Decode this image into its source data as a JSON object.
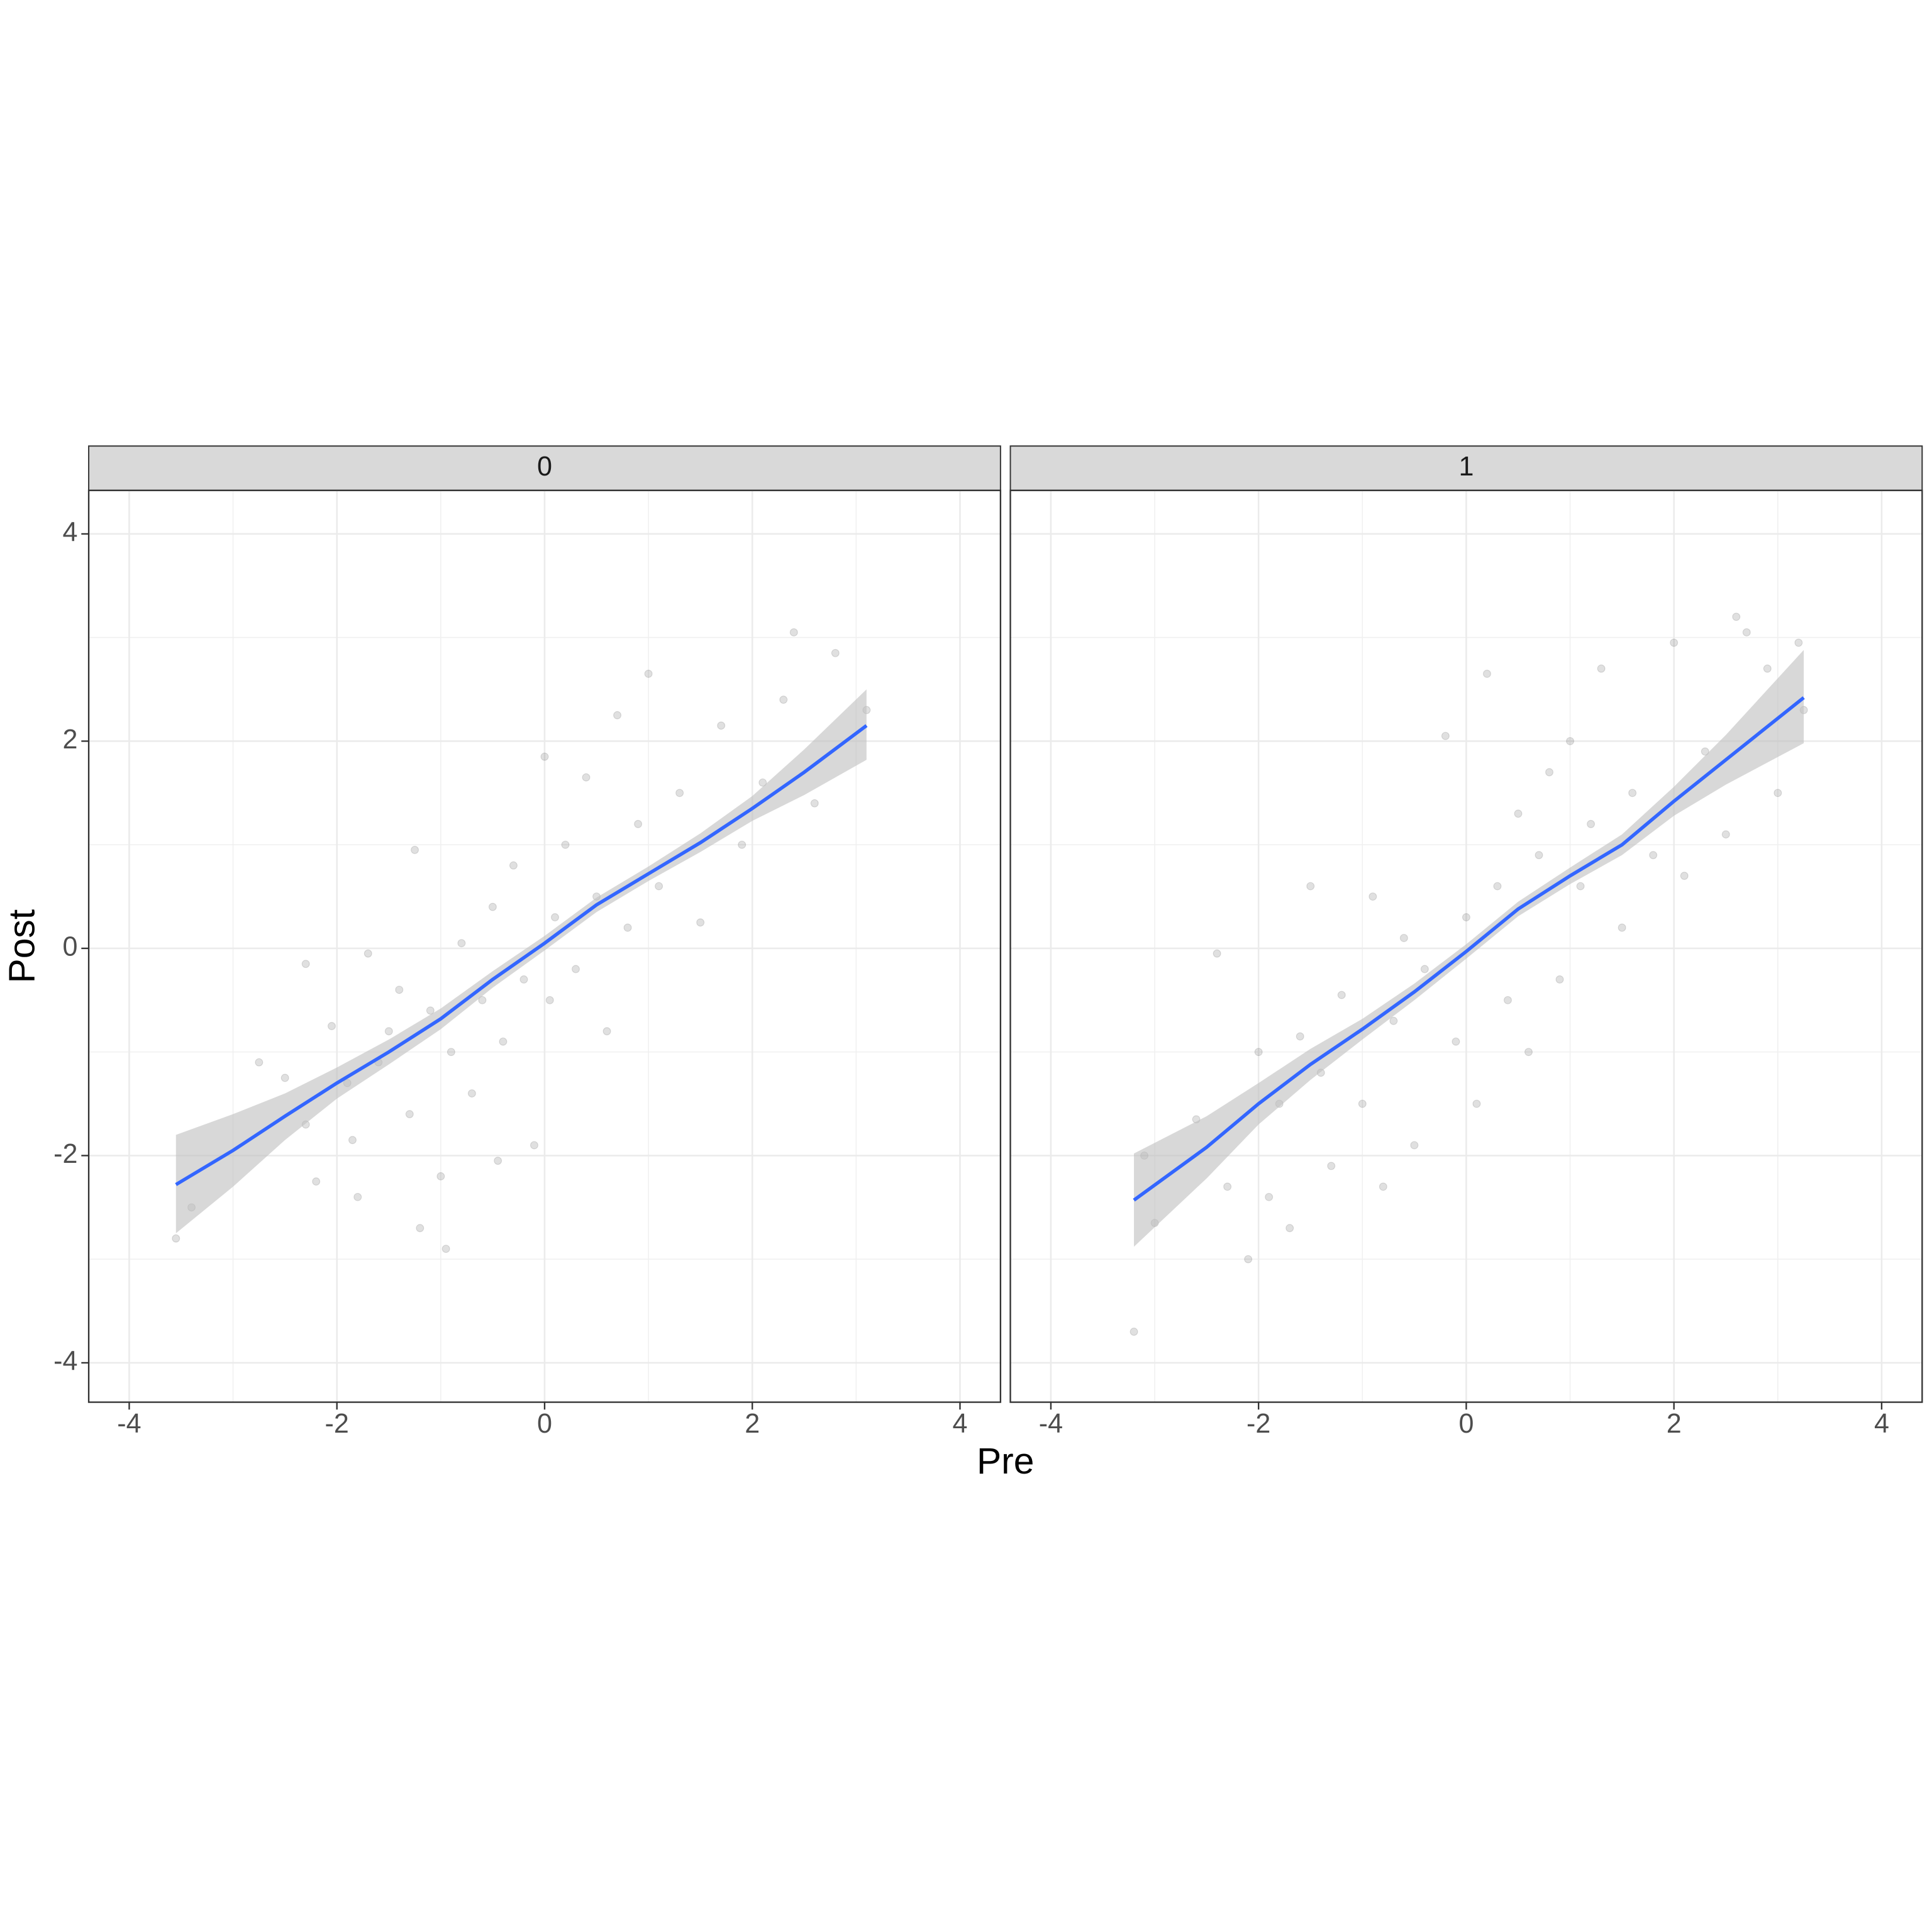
{
  "chart_data": [
    {
      "type": "scatter",
      "title": "0",
      "xlabel": "Pre",
      "ylabel": "Post",
      "xlim": [
        -4.39,
        4.39
      ],
      "ylim": [
        -4.38,
        4.42
      ],
      "xticks": [
        -4,
        -2,
        0,
        2,
        4
      ],
      "yticks": [
        -4,
        -2,
        0,
        2,
        4
      ],
      "grid": true,
      "point_color": "#000000",
      "point_alpha": 0.12,
      "x": [
        -3.55,
        -3.4,
        -2.75,
        -2.5,
        -2.3,
        -2.3,
        -2.2,
        -2.05,
        -1.9,
        -1.85,
        -1.8,
        -1.7,
        -1.6,
        -1.5,
        -1.4,
        -1.3,
        -1.25,
        -1.2,
        -1.1,
        -1.0,
        -0.95,
        -0.9,
        -0.8,
        -0.7,
        -0.6,
        -0.5,
        -0.45,
        -0.4,
        -0.3,
        -0.2,
        -0.1,
        0,
        0.05,
        0.1,
        0.2,
        0.3,
        0.4,
        0.5,
        0.6,
        0.7,
        0.8,
        0.9,
        1.0,
        1.1,
        1.3,
        1.5,
        1.7,
        1.9,
        2.1,
        2.3,
        2.4,
        2.6,
        2.8,
        3.1
      ],
      "y": [
        -2.8,
        -2.5,
        -1.1,
        -1.25,
        -1.7,
        -0.15,
        -2.25,
        -0.75,
        -1.3,
        -1.85,
        -2.4,
        -0.05,
        -1.1,
        -0.8,
        -0.4,
        -1.6,
        0.95,
        -2.7,
        -0.6,
        -2.2,
        -2.9,
        -1.0,
        0.05,
        -1.4,
        -0.5,
        0.4,
        -2.05,
        -0.9,
        0.8,
        -0.3,
        -1.9,
        1.85,
        -0.5,
        0.3,
        1.0,
        -0.2,
        1.65,
        0.5,
        -0.8,
        2.25,
        0.2,
        1.2,
        2.65,
        0.6,
        1.5,
        0.25,
        2.15,
        1.0,
        1.6,
        2.4,
        3.05,
        1.4,
        2.85,
        2.3
      ],
      "smooth": {
        "color": "#3366ff",
        "band_color": "#bebebe",
        "x": [
          -3.55,
          -3,
          -2.5,
          -2,
          -1.5,
          -1,
          -0.5,
          0,
          0.5,
          1,
          1.5,
          2,
          2.5,
          3.1
        ],
        "y": [
          -2.28,
          -1.95,
          -1.62,
          -1.3,
          -1.0,
          -0.68,
          -0.3,
          0.05,
          0.42,
          0.72,
          1.02,
          1.35,
          1.7,
          2.15
        ],
        "lower": [
          -2.75,
          -2.3,
          -1.85,
          -1.45,
          -1.12,
          -0.78,
          -0.38,
          -0.02,
          0.35,
          0.65,
          0.93,
          1.23,
          1.48,
          1.82
        ],
        "upper": [
          -1.8,
          -1.6,
          -1.4,
          -1.15,
          -0.88,
          -0.58,
          -0.22,
          0.12,
          0.49,
          0.79,
          1.11,
          1.47,
          1.92,
          2.5
        ]
      }
    },
    {
      "type": "scatter",
      "title": "1",
      "xlim": [
        -4.39,
        4.39
      ],
      "ylim": [
        -4.38,
        4.42
      ],
      "xticks": [
        -4,
        -2,
        0,
        2,
        4
      ],
      "yticks": [
        -4,
        -2,
        0,
        2,
        4
      ],
      "grid": true,
      "point_color": "#000000",
      "point_alpha": 0.12,
      "x": [
        -3.2,
        -3.1,
        -3.0,
        -2.6,
        -2.4,
        -2.3,
        -2.1,
        -2.0,
        -1.9,
        -1.8,
        -1.7,
        -1.6,
        -1.5,
        -1.4,
        -1.3,
        -1.2,
        -1.0,
        -0.9,
        -0.8,
        -0.7,
        -0.6,
        -0.5,
        -0.4,
        -0.2,
        -0.1,
        0,
        0.1,
        0.2,
        0.3,
        0.4,
        0.5,
        0.6,
        0.7,
        0.8,
        0.9,
        1.0,
        1.1,
        1.2,
        1.3,
        1.5,
        1.6,
        1.8,
        2.0,
        2.1,
        2.3,
        2.5,
        2.6,
        2.7,
        2.9,
        3.0,
        3.2,
        3.25
      ],
      "y": [
        -3.7,
        -2.0,
        -2.65,
        -1.65,
        -0.05,
        -2.3,
        -3.0,
        -1.0,
        -2.4,
        -1.5,
        -2.7,
        -0.85,
        0.6,
        -1.2,
        -2.1,
        -0.45,
        -1.5,
        0.5,
        -2.3,
        -0.7,
        0.1,
        -1.9,
        -0.2,
        2.05,
        -0.9,
        0.3,
        -1.5,
        2.65,
        0.6,
        -0.5,
        1.3,
        -1.0,
        0.9,
        1.7,
        -0.3,
        2.0,
        0.6,
        1.2,
        2.7,
        0.2,
        1.5,
        0.9,
        2.95,
        0.7,
        1.9,
        1.1,
        3.2,
        3.05,
        2.7,
        1.5,
        2.95,
        2.3
      ],
      "smooth": {
        "color": "#3366ff",
        "band_color": "#bebebe",
        "x": [
          -3.2,
          -2.5,
          -2,
          -1.5,
          -1,
          -0.5,
          0,
          0.5,
          1,
          1.5,
          2,
          2.5,
          3.25
        ],
        "y": [
          -2.43,
          -1.92,
          -1.5,
          -1.12,
          -0.78,
          -0.42,
          -0.03,
          0.38,
          0.7,
          1.0,
          1.42,
          1.82,
          2.42
        ],
        "lower": [
          -2.88,
          -2.22,
          -1.7,
          -1.27,
          -0.88,
          -0.5,
          -0.1,
          0.31,
          0.62,
          0.9,
          1.28,
          1.58,
          1.98
        ],
        "upper": [
          -1.98,
          -1.62,
          -1.3,
          -0.97,
          -0.68,
          -0.34,
          0.04,
          0.45,
          0.78,
          1.1,
          1.56,
          2.06,
          2.88
        ]
      }
    }
  ]
}
